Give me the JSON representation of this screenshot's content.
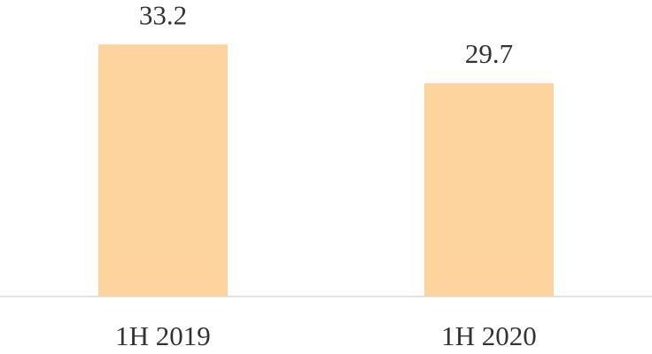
{
  "chart_data": {
    "type": "bar",
    "categories": [
      "1H 2019",
      "1H 2020"
    ],
    "values": [
      33.2,
      29.7
    ],
    "color": "#fdd49d",
    "ylim": [
      10.5,
      37.2
    ]
  }
}
